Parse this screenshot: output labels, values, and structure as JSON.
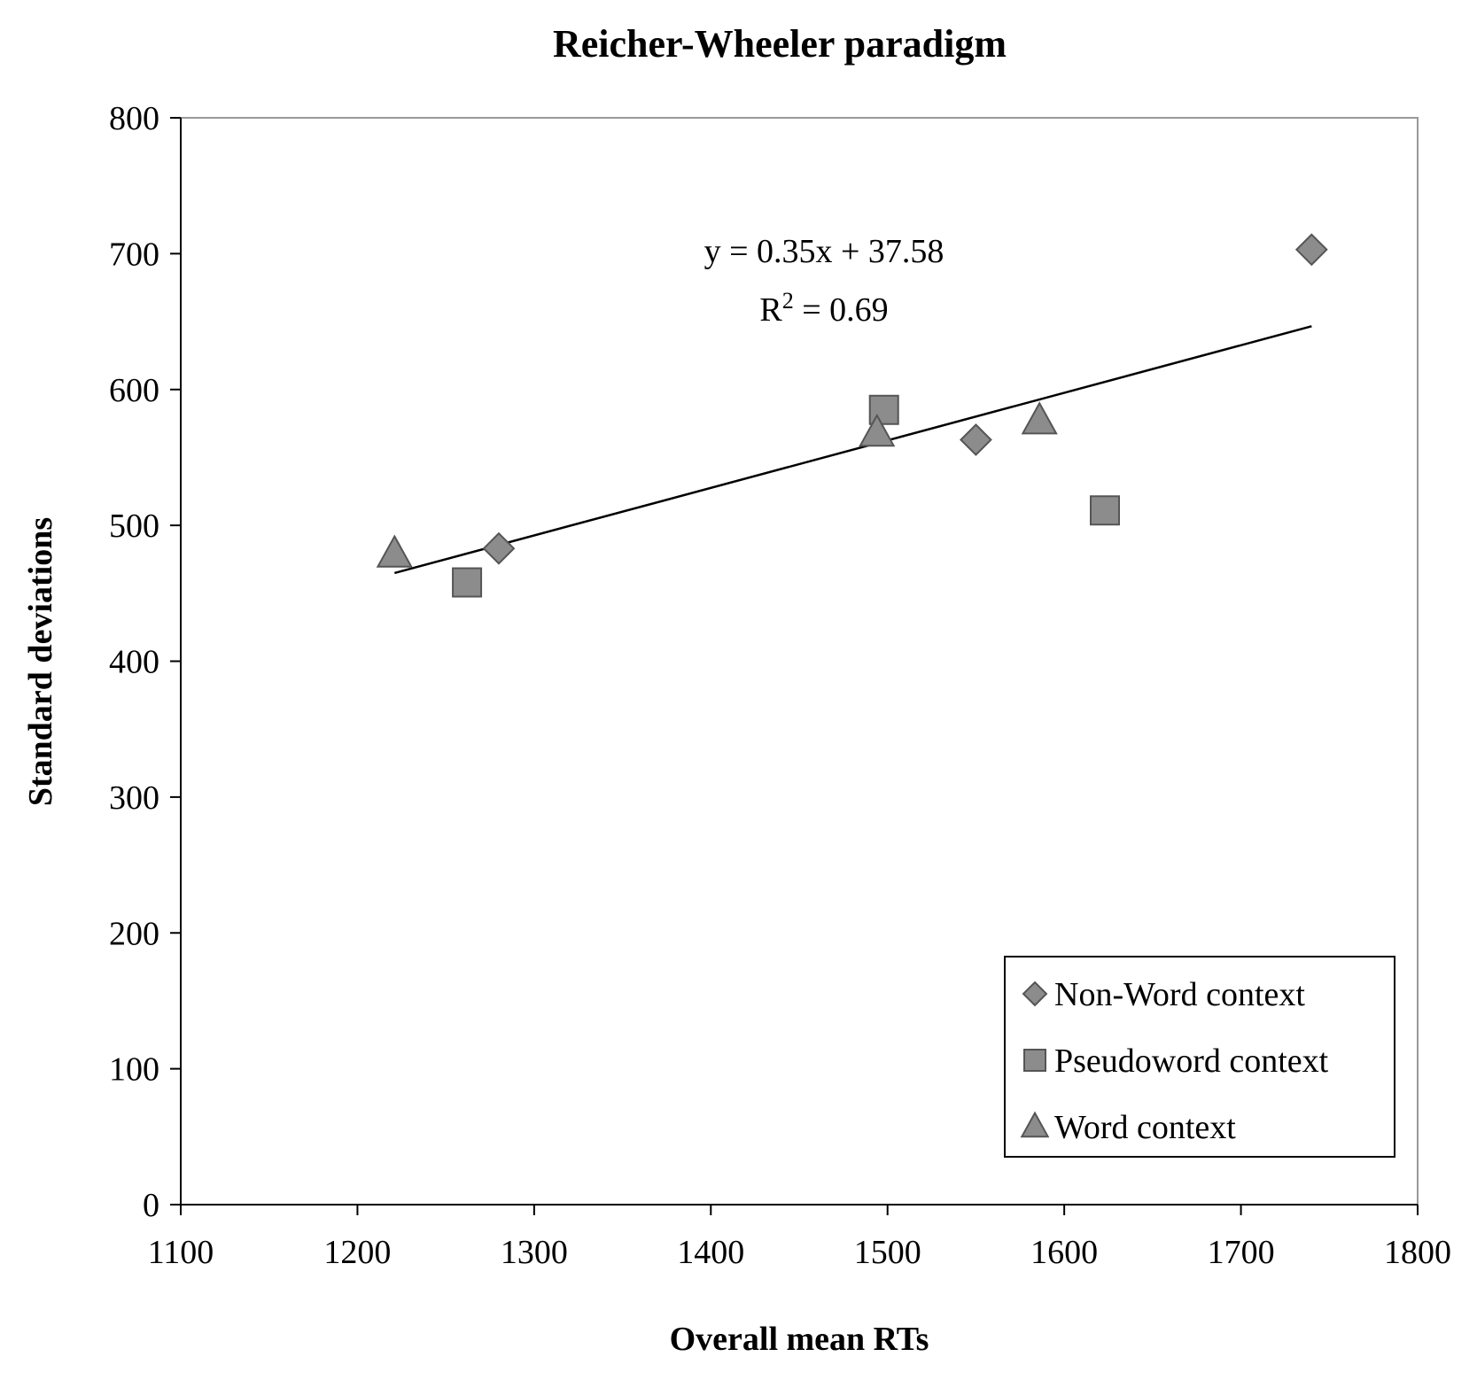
{
  "chart_data": {
    "type": "scatter",
    "title": "Reicher-Wheeler paradigm",
    "xlabel": "Overall mean RTs",
    "ylabel": "Standard deviations",
    "xlim": [
      1100,
      1800
    ],
    "ylim": [
      0,
      800
    ],
    "x_ticks": [
      "1100",
      "1200",
      "1300",
      "1400",
      "1500",
      "1600",
      "1700",
      "1800"
    ],
    "y_ticks": [
      "0",
      "100",
      "200",
      "300",
      "400",
      "500",
      "600",
      "700",
      "800"
    ],
    "grid": false,
    "legend_position": "bottom-right",
    "series": [
      {
        "name": "Non-Word context",
        "marker": "diamond",
        "color": "#8c8c8c",
        "points": [
          [
            1280,
            483
          ],
          [
            1550,
            563
          ],
          [
            1740,
            703
          ]
        ]
      },
      {
        "name": "Pseudoword context",
        "marker": "square",
        "color": "#8c8c8c",
        "points": [
          [
            1262,
            458
          ],
          [
            1498,
            585
          ],
          [
            1623,
            511
          ]
        ]
      },
      {
        "name": "Word context",
        "marker": "triangle",
        "color": "#8c8c8c",
        "points": [
          [
            1221,
            479
          ],
          [
            1494,
            568
          ],
          [
            1586,
            577
          ]
        ]
      }
    ],
    "trendline": {
      "slope": 0.35,
      "intercept": 37.58,
      "x_range": [
        1221,
        1740
      ],
      "equation_text": "y = 0.35x + 37.58",
      "r2_prefix": "R",
      "r2_sup": "2",
      "r2_value": " = 0.69"
    }
  }
}
